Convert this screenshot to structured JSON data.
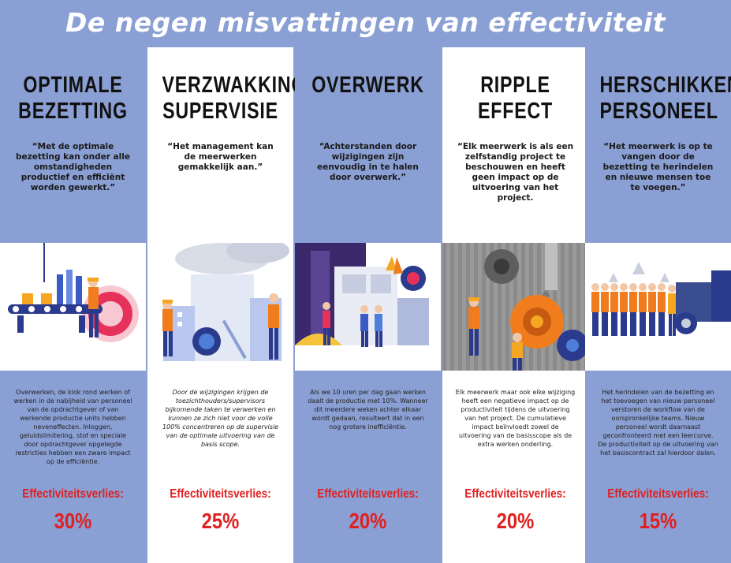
{
  "page_title": "De negen misvattingen van effectiviteit",
  "colors": {
    "background": "#8a9fd3",
    "panel_white": "#ffffff",
    "loss_red": "#e02020",
    "text_dark": "#111111"
  },
  "columns": [
    {
      "title": "OPTIMALE\nBEZETTING",
      "quote": "“Met de optimale bezetting kan onder alle omstandigheden productief en efficiënt worden gewerkt.”",
      "illustration": "conveyor-belt-worker-icon",
      "body": "Overwerken, de klok rond werken of werken in de nabijheid van personeel van de opdrachtgever of van werkende productie units hebben neveneffecten. Inloggen, geluidslimitering, stof en speciale door opdrachtgever opgelegde restricties hebben een zware impact op de efficiëntie.",
      "loss_label": "Effectiviteitsverlies:",
      "loss_value": "30%"
    },
    {
      "title": "VERZWAKKING\nSUPERVISIE",
      "quote": "“Het management kan de meerwerken gemakkelijk aan.”",
      "illustration": "factory-smoke-workers-icon",
      "body": "Door de wijzigingen krijgen de toezichthouders/supervisors bijkomende taken te verwerken en kunnen ze zich niet voor de volle 100% concentreren op de supervisie van de optimale uitvoering van de basis scope.",
      "loss_label": "Effectiviteitsverlies:",
      "loss_value": "25%"
    },
    {
      "title": "OVERWERK",
      "quote": "“Achterstanden door wijzigingen zijn eenvoudig in te halen door overwerk.”",
      "illustration": "night-machinery-workers-icon",
      "body": "Als we 10 uren per dag gaan werken daalt de productie met 10%. Wanneer dit meerdere weken achter elkaar wordt gedaan, resulteert dat in een nog grotere inefficiëntie.",
      "loss_label": "Effectiviteitsverlies:",
      "loss_value": "20%"
    },
    {
      "title": "RIPPLE EFFECT",
      "quote": "“Elk meerwerk is als een zelfstandig project te beschouwen en heeft geen impact op de uitvoering van het project.",
      "illustration": "gears-crane-workers-icon",
      "body": "Elk meerwerk maar ook elke wijziging heeft een negatieve impact op de productiviteit tijdens de uitvoering van het project. De cumulatieve impact beïnvloedt zowel de uitvoering van de basisscope als de extra werken onderling.",
      "loss_label": "Effectiviteitsverlies:",
      "loss_value": "20%"
    },
    {
      "title": "HERSCHIKKEN\nPERSONEEL",
      "quote": "“Het meerwerk is op te vangen door de bezetting te herindelen en nieuwe mensen toe te voegen.”",
      "illustration": "worker-crowd-truck-icon",
      "body": "Het herindelen van de bezetting en het toevoegen van nieuw personeel verstoren de workflow van de oorspronkelijke teams. Nieuw personeel wordt daarnaast geconfronteerd met een leercurve. De productiviteit op de uitvoering van het basiscontract zal hierdoor dalen.",
      "loss_label": "Effectiviteitsverlies:",
      "loss_value": "15%"
    }
  ]
}
